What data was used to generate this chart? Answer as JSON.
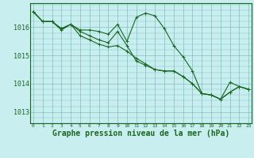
{
  "background_color": "#c8eef0",
  "grid_color": "#7fbfbf",
  "line_color": "#1a6620",
  "xlabel": "Graphe pression niveau de la mer (hPa)",
  "xlabel_fontsize": 7,
  "xtick_labels": [
    "0",
    "1",
    "2",
    "3",
    "4",
    "5",
    "6",
    "7",
    "8",
    "9",
    "10",
    "11",
    "12",
    "13",
    "14",
    "15",
    "16",
    "17",
    "18",
    "19",
    "20",
    "21",
    "22",
    "23"
  ],
  "ytick_values": [
    1013,
    1014,
    1015,
    1016
  ],
  "ylim": [
    1012.6,
    1016.85
  ],
  "xlim": [
    -0.3,
    23.3
  ],
  "series1": [
    1016.55,
    1016.2,
    1016.2,
    1015.95,
    1016.1,
    1015.9,
    1015.9,
    1015.85,
    1015.75,
    1016.1,
    1015.5,
    1016.35,
    1016.5,
    1016.4,
    1015.95,
    1015.35,
    1014.95,
    1014.45,
    1013.65,
    1013.6,
    1013.45,
    1014.05,
    1013.9,
    1013.8
  ],
  "series2": [
    1016.55,
    1016.2,
    1016.2,
    1015.95,
    1016.1,
    1015.7,
    1015.55,
    1015.4,
    1015.3,
    1015.35,
    1015.15,
    1014.9,
    1014.7,
    1014.5,
    1014.45,
    1014.45,
    1014.25,
    1014.0,
    1013.65,
    1013.6,
    1013.45,
    1013.7,
    1013.9,
    1013.8
  ],
  "series3": [
    1016.55,
    1016.2,
    1016.2,
    1015.9,
    1016.1,
    1015.85,
    1015.7,
    1015.55,
    1015.45,
    1015.85,
    1015.35,
    1014.8,
    1014.65,
    1014.5,
    1014.45,
    1014.45,
    1014.25,
    1014.0,
    1013.65,
    1013.6,
    1013.45,
    1013.7,
    1013.9,
    1013.8
  ]
}
